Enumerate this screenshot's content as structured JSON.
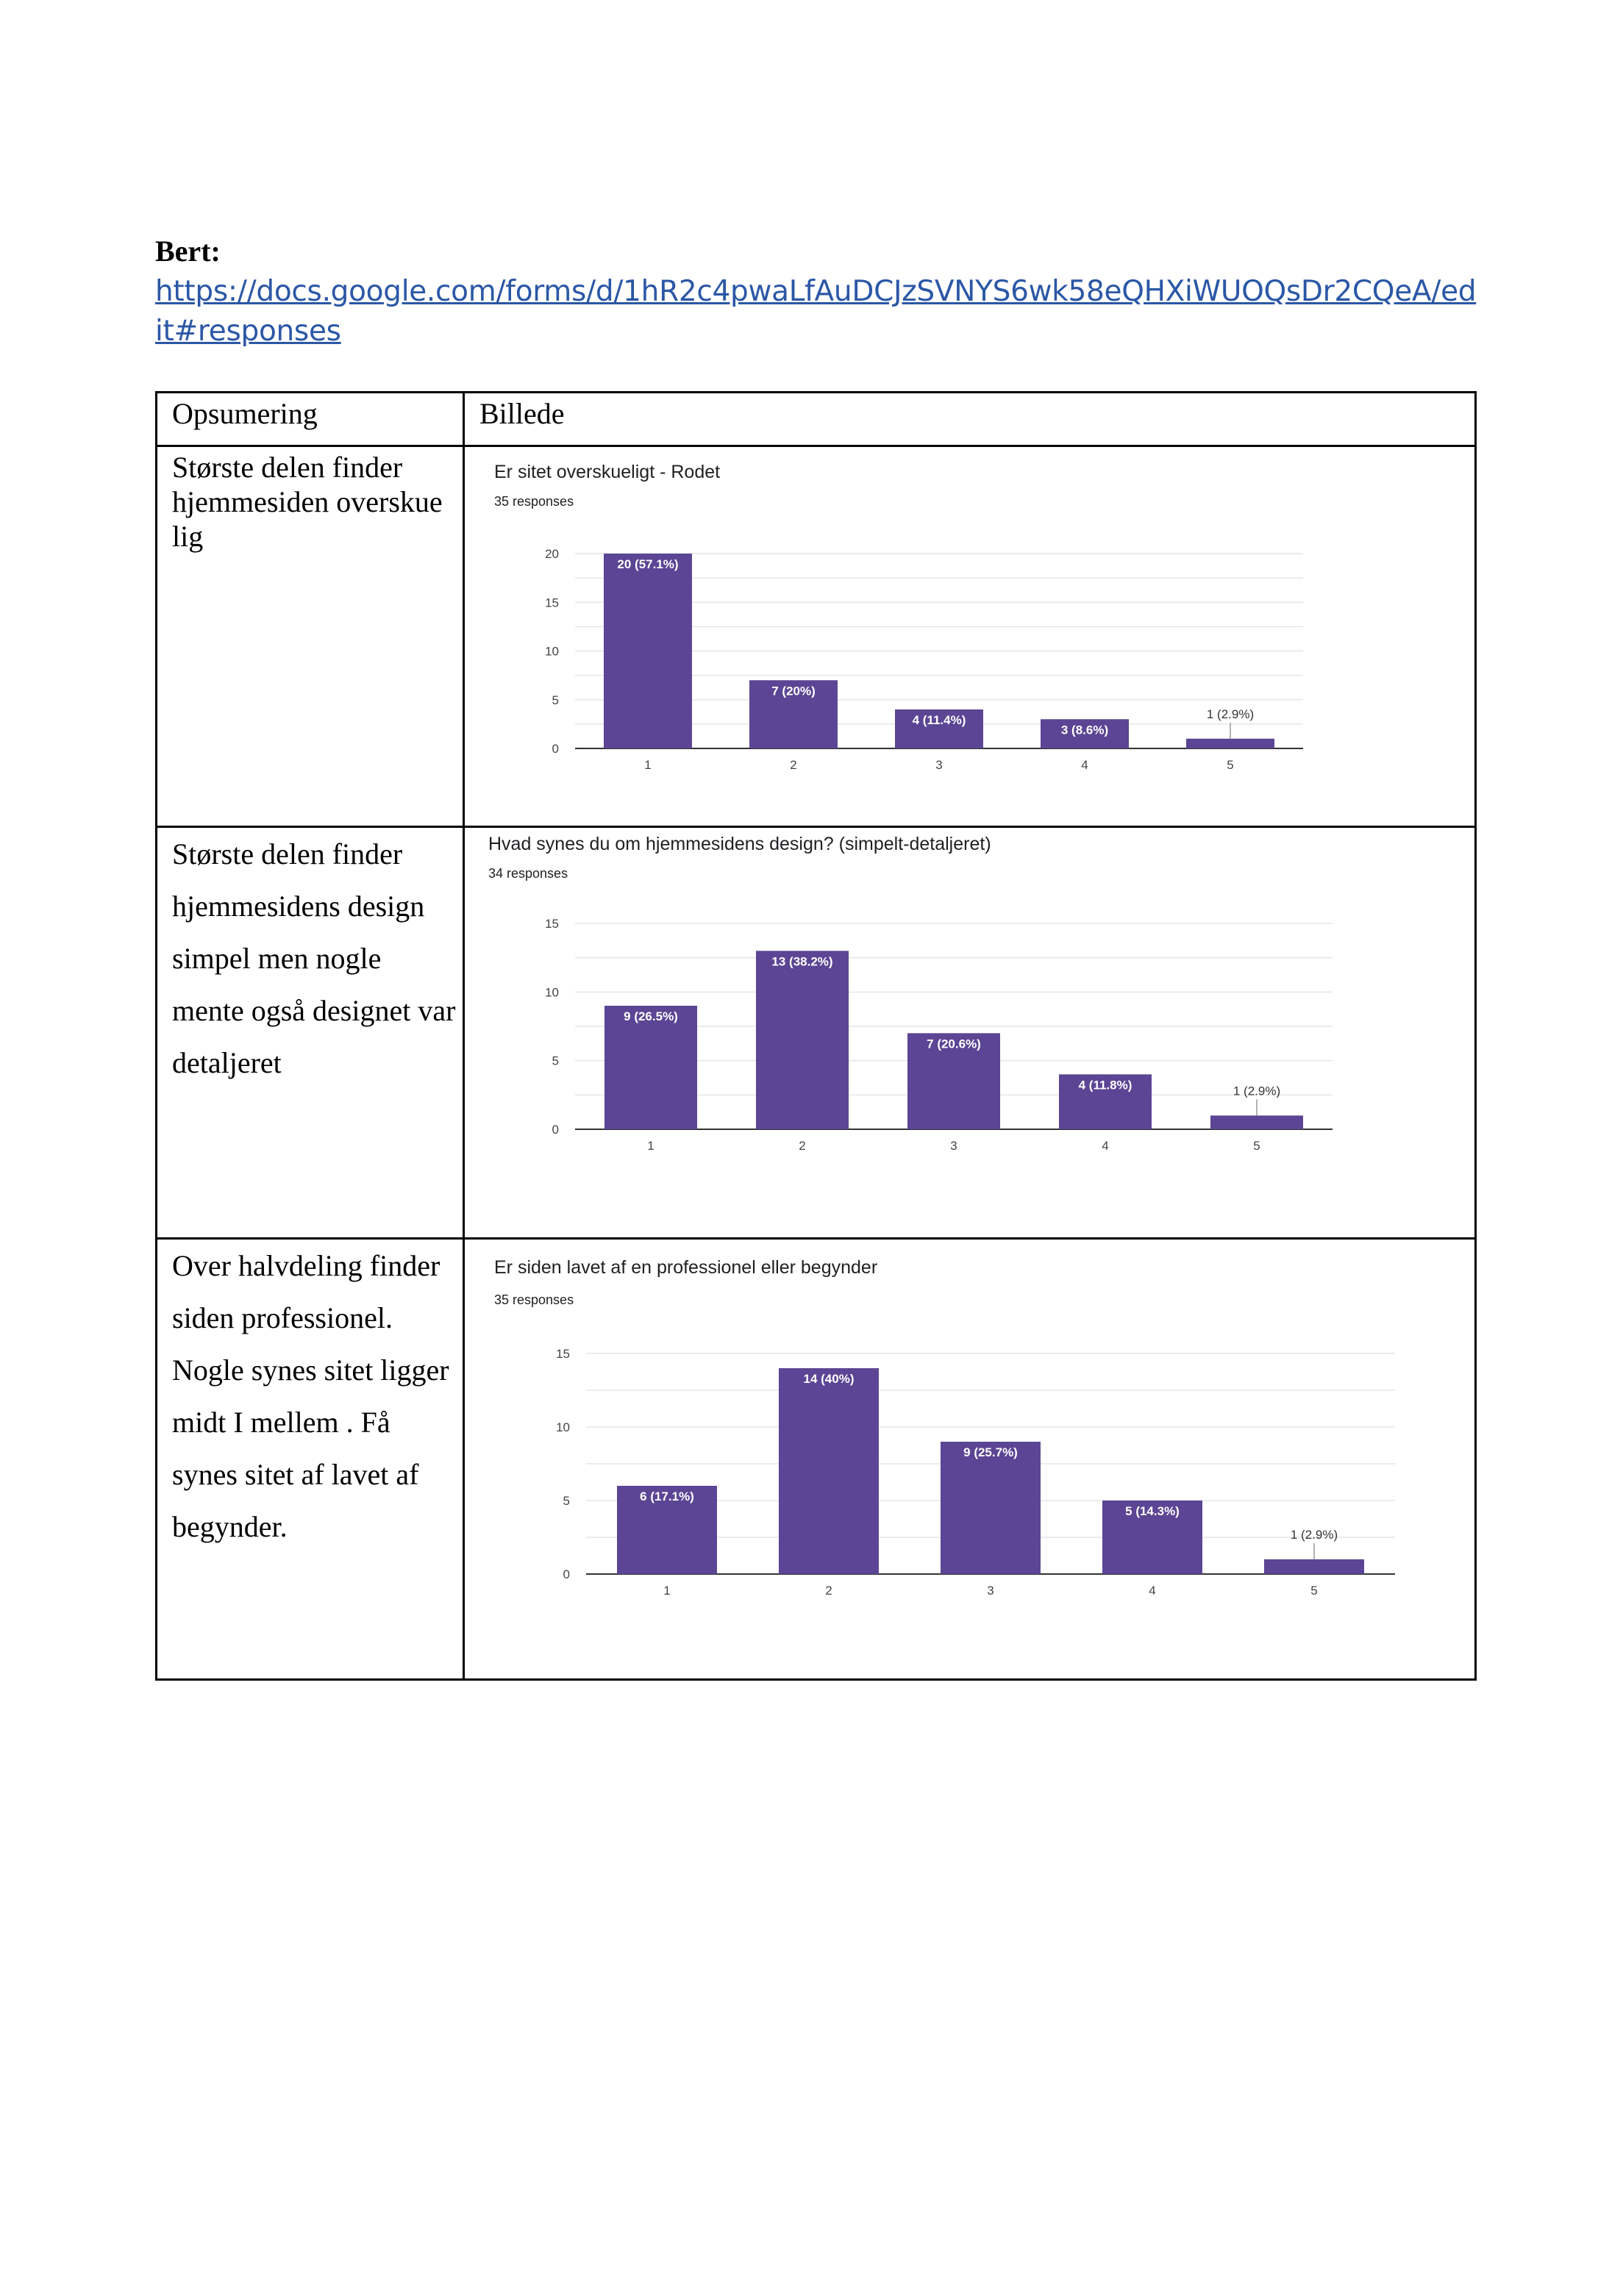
{
  "document": {
    "heading": "Bert:",
    "link_text": "https://docs.google.com/forms/d/1hR2c4pwaLfAuDCJzSVNYS6wk58eQHXiWUOQsDr2CQeA/edit#responses"
  },
  "table": {
    "headers": [
      "Opsumering",
      "Billede"
    ],
    "rows": [
      {
        "summary": "Største delen finder hjemmesiden overskue lig"
      },
      {
        "summary": "Største delen finder hjemmesidens design simpel men nogle mente også designet var detaljeret"
      },
      {
        "summary": "Over halvdeling finder siden professionel. Nogle synes sitet ligger midt I mellem . Få synes sitet af lavet af begynder."
      }
    ]
  },
  "colors": {
    "bar": "#5c4594",
    "grid": "#e6e6e6",
    "axis": "#333333",
    "link": "#2b57a6"
  },
  "chart_data": [
    {
      "type": "bar",
      "title": "Er sitet overskueligt - Rodet",
      "subtitle": "35 responses",
      "categories": [
        "1",
        "2",
        "3",
        "4",
        "5"
      ],
      "values": [
        20,
        7,
        4,
        3,
        1
      ],
      "labels": [
        "20 (57.1%)",
        "7 (20%)",
        "4 (11.4%)",
        "3 (8.6%)",
        "1 (2.9%)"
      ],
      "yticks": [
        "0",
        "5",
        "10",
        "15",
        "20"
      ],
      "ylim": [
        0,
        20
      ],
      "grid": true
    },
    {
      "type": "bar",
      "title": "Hvad synes du om hjemmesidens design? (simpelt-detaljeret)",
      "subtitle": "34 responses",
      "categories": [
        "1",
        "2",
        "3",
        "4",
        "5"
      ],
      "values": [
        9,
        13,
        7,
        4,
        1
      ],
      "labels": [
        "9 (26.5%)",
        "13 (38.2%)",
        "7 (20.6%)",
        "4 (11.8%)",
        "1 (2.9%)"
      ],
      "yticks": [
        "0",
        "5",
        "10",
        "15"
      ],
      "ylim": [
        0,
        15
      ],
      "grid": true
    },
    {
      "type": "bar",
      "title": "Er siden lavet af en professionel eller begynder",
      "subtitle": "35 responses",
      "categories": [
        "1",
        "2",
        "3",
        "4",
        "5"
      ],
      "values": [
        6,
        14,
        9,
        5,
        1
      ],
      "labels": [
        "6 (17.1%)",
        "14 (40%)",
        "9 (25.7%)",
        "5 (14.3%)",
        "1 (2.9%)"
      ],
      "yticks": [
        "0",
        "5",
        "10",
        "15"
      ],
      "ylim": [
        0,
        15
      ],
      "grid": true
    }
  ]
}
